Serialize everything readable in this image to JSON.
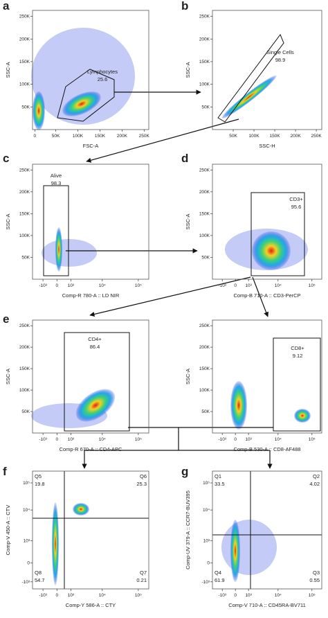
{
  "panels": [
    {
      "letter": "a",
      "x_label": "FSC-A",
      "y_label": "SSC-A",
      "x_ticks": [
        "0",
        "50K",
        "100K",
        "150K",
        "200K",
        "250K"
      ],
      "y_ticks": [
        "50K",
        "100K",
        "150K",
        "200K",
        "250K"
      ],
      "gates": [
        {
          "name": "Lymphocytes",
          "value": 25.6
        }
      ]
    },
    {
      "letter": "b",
      "x_label": "SSC-H",
      "y_label": "SSC-A",
      "x_ticks": [
        "50K",
        "100K",
        "150K",
        "200K",
        "250K"
      ],
      "y_ticks": [
        "50K",
        "100K",
        "150K",
        "200K",
        "250K"
      ],
      "gates": [
        {
          "name": "Single Cells",
          "value": 98.9
        }
      ]
    },
    {
      "letter": "c",
      "x_label": "Comp-R 780-A :: LD NIR",
      "y_label": "SSC-A",
      "x_ticks": [
        "-10³",
        "0",
        "10³",
        "10⁴",
        "10⁵"
      ],
      "y_ticks": [
        "50K",
        "100K",
        "150K",
        "200K",
        "250K"
      ],
      "gates": [
        {
          "name": "Alive",
          "value": 98.3
        }
      ]
    },
    {
      "letter": "d",
      "x_label": "Comp-B 710-A :: CD3-PerCP",
      "y_label": "SSC-A",
      "x_ticks": [
        "-10³",
        "0",
        "10³",
        "10⁴",
        "10⁵"
      ],
      "y_ticks": [
        "50K",
        "100K",
        "150K",
        "200K",
        "250K"
      ],
      "gates": [
        {
          "name": "CD3+",
          "value": 95.6
        }
      ]
    },
    {
      "letter": "e",
      "x_label": "Comp-R 670-A :: CD4-APC",
      "y_label": "SSC-A",
      "x_ticks": [
        "-10³",
        "0",
        "10³",
        "10⁴",
        "10⁵"
      ],
      "y_ticks": [
        "50K",
        "100K",
        "150K",
        "200K",
        "250K"
      ],
      "gates": [
        {
          "name": "CD4+",
          "value": 86.4
        }
      ]
    },
    {
      "x_label": "Comp-B 530-A :: CD8-AF488",
      "y_label": "SSC-A",
      "x_ticks": [
        "-10³",
        "0",
        "10³",
        "10⁴",
        "10⁵"
      ],
      "y_ticks": [
        "50K",
        "100K",
        "150K",
        "200K",
        "250K"
      ],
      "gates": [
        {
          "name": "CD8+",
          "value": 9.12
        }
      ]
    },
    {
      "letter": "f",
      "x_label": "Comp-Y 586-A :: CTY",
      "y_label": "Comp-V 450-A :: CTV",
      "x_ticks": [
        "-10³",
        "0",
        "10³",
        "10⁴",
        "10⁵"
      ],
      "y_ticks": [
        "10⁵",
        "10⁴",
        "10³",
        "0",
        "-10³"
      ],
      "gates": [
        {
          "name": "Q5",
          "value": 19.8
        },
        {
          "name": "Q6",
          "value": 25.3
        },
        {
          "name": "Q8",
          "value": 54.7
        },
        {
          "name": "Q7",
          "value": 0.21
        }
      ]
    },
    {
      "letter": "g",
      "x_label": "Comp-V 710-A :: CD45RA-BV711",
      "y_label": "Comp-UV 379-A :: CCR7-BUV395",
      "x_ticks": [
        "-10³",
        "0",
        "10³",
        "10⁴",
        "10⁵"
      ],
      "y_ticks": [
        "10⁵",
        "10⁴",
        "10³",
        "0",
        "-10³"
      ],
      "gates": [
        {
          "name": "Q1",
          "value": 33.5
        },
        {
          "name": "Q2",
          "value": 4.02
        },
        {
          "name": "Q4",
          "value": 61.9
        },
        {
          "name": "Q3",
          "value": 0.55
        }
      ]
    }
  ]
}
